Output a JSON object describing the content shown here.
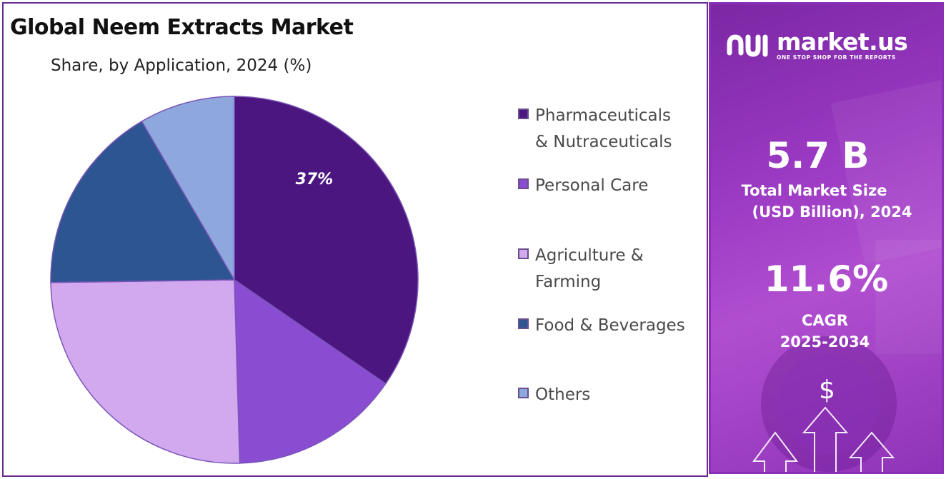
{
  "title": "Global Neem Extracts Market",
  "subtitle": "Share, by Application, 2024 (%)",
  "chart_data": {
    "type": "pie",
    "title": "Global Neem Extracts Market",
    "subtitle": "Share, by Application, 2024 (%)",
    "categories": [
      "Pharmaceuticals & Nutraceuticals",
      "Personal Care",
      "Agriculture & Farming",
      "Food & Beverages",
      "Others"
    ],
    "values": [
      37,
      16,
      27,
      18,
      9
    ],
    "colors": [
      "#4c1680",
      "#8a4dd2",
      "#d2a8ef",
      "#2d5591",
      "#8ea8de"
    ],
    "data_labels": [
      "37%",
      "",
      "",
      "",
      ""
    ],
    "legend_position": "right"
  },
  "legend": [
    {
      "label_line1": "Pharmaceuticals",
      "label_line2": "& Nutraceuticals",
      "color": "#4c1680"
    },
    {
      "label_line1": "Personal Care",
      "label_line2": "",
      "color": "#8a4dd2"
    },
    {
      "label_line1": "Agriculture &",
      "label_line2": "Farming",
      "color": "#d2a8ef"
    },
    {
      "label_line1": "Food & Beverages",
      "label_line2": "",
      "color": "#2d5591"
    },
    {
      "label_line1": "Others",
      "label_line2": "",
      "color": "#8ea8de"
    }
  ],
  "sidebar": {
    "brand_name": "market.us",
    "brand_tagline": "ONE STOP SHOP FOR THE REPORTS",
    "market_size_value": "5.7 B",
    "market_size_label_line1": "Total Market Size",
    "market_size_label_line2": "(USD Billion), 2024",
    "cagr_value": "11.6%",
    "cagr_label_line1": "CAGR",
    "cagr_label_line2": "2025-2034",
    "dollar_symbol": "$",
    "accent_color": "#9a39c2"
  }
}
